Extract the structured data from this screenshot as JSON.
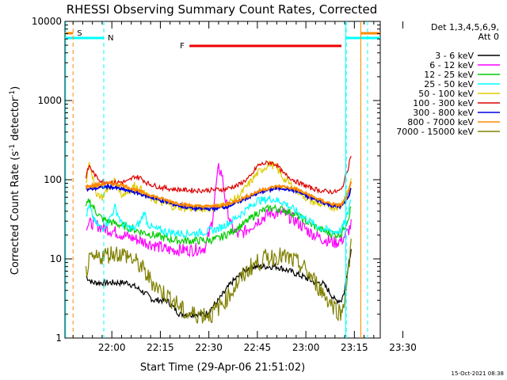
{
  "chart_data": {
    "type": "line",
    "title": "RHESSI Observing Summary Count Rates, Corrected",
    "xlabel": "Start Time (29-Apr-06 21:51:02)",
    "ylabel_main": "Corrected Count Rate (s",
    "ylabel_sup1": "-1",
    "ylabel_mid": " detector",
    "ylabel_sup2": "-1",
    "ylabel_end": ")",
    "y_scale": "log",
    "ylim": [
      1,
      10000
    ],
    "xlim_minutes": [
      -5.5,
      92
    ],
    "y_ticks": [
      {
        "value": 1,
        "label": "1"
      },
      {
        "value": 10,
        "label": "10"
      },
      {
        "value": 100,
        "label": "100"
      },
      {
        "value": 1000,
        "label": "1000"
      },
      {
        "value": 10000,
        "label": "10000"
      }
    ],
    "x_ticks": [
      {
        "value": 9,
        "label": "22:00"
      },
      {
        "value": 24,
        "label": "22:15"
      },
      {
        "value": 39,
        "label": "22:30"
      },
      {
        "value": 54,
        "label": "22:45"
      },
      {
        "value": 69,
        "label": "23:00"
      },
      {
        "value": 84,
        "label": "23:15"
      },
      {
        "value": 99,
        "label": "23:30"
      }
    ],
    "legend_title_1": "Det 1,3,4,5,6,9,",
    "legend_title_2": "Att 0",
    "legend_placement": "right",
    "series": [
      {
        "name": "3 - 6 keV",
        "color": "#000000",
        "values": [
          [
            1,
            6
          ],
          [
            3,
            5
          ],
          [
            6,
            5
          ],
          [
            10,
            5
          ],
          [
            14,
            5
          ],
          [
            18,
            4
          ],
          [
            22,
            3
          ],
          [
            26,
            3
          ],
          [
            30,
            2
          ],
          [
            34,
            2
          ],
          [
            38,
            2
          ],
          [
            42,
            3
          ],
          [
            46,
            5
          ],
          [
            50,
            7
          ],
          [
            52,
            8
          ],
          [
            56,
            8
          ],
          [
            60,
            8
          ],
          [
            64,
            7
          ],
          [
            68,
            6
          ],
          [
            72,
            5
          ],
          [
            74,
            5
          ],
          [
            76,
            4
          ],
          [
            78,
            3
          ],
          [
            80,
            3
          ],
          [
            81,
            4
          ],
          [
            82,
            8
          ],
          [
            83,
            13
          ]
        ]
      },
      {
        "name": "6 - 12 keV",
        "color": "#ff00ff",
        "values": [
          [
            1,
            27
          ],
          [
            3,
            28
          ],
          [
            6,
            25
          ],
          [
            10,
            22
          ],
          [
            14,
            19
          ],
          [
            18,
            17
          ],
          [
            22,
            15
          ],
          [
            26,
            13
          ],
          [
            30,
            13
          ],
          [
            34,
            13
          ],
          [
            38,
            14
          ],
          [
            40,
            30
          ],
          [
            41,
            70
          ],
          [
            42,
            140
          ],
          [
            43,
            120
          ],
          [
            44,
            60
          ],
          [
            46,
            25
          ],
          [
            48,
            20
          ],
          [
            50,
            22
          ],
          [
            54,
            30
          ],
          [
            58,
            38
          ],
          [
            62,
            38
          ],
          [
            66,
            30
          ],
          [
            70,
            22
          ],
          [
            74,
            18
          ],
          [
            78,
            16
          ],
          [
            80,
            17
          ],
          [
            82,
            22
          ],
          [
            83,
            27
          ]
        ]
      },
      {
        "name": "12 - 25 keV",
        "color": "#00cc00",
        "values": [
          [
            1,
            45
          ],
          [
            2,
            55
          ],
          [
            4,
            40
          ],
          [
            6,
            32
          ],
          [
            10,
            28
          ],
          [
            14,
            25
          ],
          [
            18,
            22
          ],
          [
            22,
            20
          ],
          [
            26,
            18
          ],
          [
            30,
            17
          ],
          [
            34,
            17
          ],
          [
            38,
            17
          ],
          [
            42,
            18
          ],
          [
            46,
            22
          ],
          [
            50,
            28
          ],
          [
            54,
            38
          ],
          [
            58,
            44
          ],
          [
            62,
            42
          ],
          [
            66,
            36
          ],
          [
            70,
            28
          ],
          [
            74,
            23
          ],
          [
            78,
            20
          ],
          [
            80,
            21
          ],
          [
            82,
            32
          ],
          [
            83,
            45
          ]
        ]
      },
      {
        "name": "25 - 50 keV",
        "color": "#00ffff",
        "values": [
          [
            1,
            35
          ],
          [
            2,
            45
          ],
          [
            4,
            28
          ],
          [
            6,
            24
          ],
          [
            8,
            30
          ],
          [
            10,
            45
          ],
          [
            12,
            28
          ],
          [
            14,
            25
          ],
          [
            16,
            24
          ],
          [
            18,
            30
          ],
          [
            19,
            40
          ],
          [
            20,
            28
          ],
          [
            22,
            24
          ],
          [
            26,
            22
          ],
          [
            30,
            21
          ],
          [
            34,
            21
          ],
          [
            38,
            22
          ],
          [
            42,
            24
          ],
          [
            46,
            30
          ],
          [
            50,
            40
          ],
          [
            54,
            55
          ],
          [
            56,
            55
          ],
          [
            58,
            58
          ],
          [
            62,
            52
          ],
          [
            66,
            40
          ],
          [
            70,
            30
          ],
          [
            74,
            24
          ],
          [
            78,
            22
          ],
          [
            80,
            23
          ],
          [
            82,
            38
          ],
          [
            83,
            60
          ]
        ]
      },
      {
        "name": "50 - 100 keV",
        "color": "#ddcc00",
        "values": [
          [
            1,
            90
          ],
          [
            2,
            180
          ],
          [
            4,
            70
          ],
          [
            6,
            60
          ],
          [
            8,
            80
          ],
          [
            10,
            100
          ],
          [
            12,
            65
          ],
          [
            14,
            70
          ],
          [
            16,
            85
          ],
          [
            18,
            75
          ],
          [
            20,
            60
          ],
          [
            24,
            52
          ],
          [
            28,
            46
          ],
          [
            32,
            44
          ],
          [
            36,
            43
          ],
          [
            40,
            44
          ],
          [
            44,
            48
          ],
          [
            48,
            60
          ],
          [
            52,
            95
          ],
          [
            54,
            120
          ],
          [
            56,
            140
          ],
          [
            58,
            160
          ],
          [
            60,
            140
          ],
          [
            62,
            105
          ],
          [
            66,
            75
          ],
          [
            70,
            55
          ],
          [
            74,
            48
          ],
          [
            78,
            45
          ],
          [
            80,
            48
          ],
          [
            82,
            75
          ],
          [
            83,
            100
          ]
        ]
      },
      {
        "name": "100 - 300 keV",
        "color": "#dd0000",
        "values": [
          [
            1,
            110
          ],
          [
            2,
            150
          ],
          [
            4,
            110
          ],
          [
            6,
            95
          ],
          [
            10,
            92
          ],
          [
            14,
            95
          ],
          [
            16,
            110
          ],
          [
            18,
            105
          ],
          [
            20,
            90
          ],
          [
            24,
            80
          ],
          [
            28,
            76
          ],
          [
            32,
            74
          ],
          [
            36,
            73
          ],
          [
            40,
            74
          ],
          [
            44,
            76
          ],
          [
            48,
            85
          ],
          [
            52,
            110
          ],
          [
            54,
            150
          ],
          [
            56,
            160
          ],
          [
            58,
            165
          ],
          [
            60,
            155
          ],
          [
            62,
            120
          ],
          [
            66,
            95
          ],
          [
            70,
            80
          ],
          [
            74,
            72
          ],
          [
            78,
            70
          ],
          [
            80,
            74
          ],
          [
            82,
            140
          ],
          [
            83,
            210
          ]
        ]
      },
      {
        "name": "300 - 800 keV",
        "color": "#0000dd",
        "values": [
          [
            1,
            75
          ],
          [
            4,
            78
          ],
          [
            8,
            82
          ],
          [
            12,
            76
          ],
          [
            16,
            70
          ],
          [
            20,
            62
          ],
          [
            24,
            55
          ],
          [
            28,
            49
          ],
          [
            32,
            45
          ],
          [
            36,
            43
          ],
          [
            40,
            43
          ],
          [
            44,
            45
          ],
          [
            48,
            52
          ],
          [
            52,
            62
          ],
          [
            56,
            72
          ],
          [
            60,
            78
          ],
          [
            62,
            78
          ],
          [
            66,
            72
          ],
          [
            70,
            60
          ],
          [
            74,
            52
          ],
          [
            78,
            46
          ],
          [
            80,
            46
          ],
          [
            82,
            58
          ],
          [
            83,
            80
          ]
        ]
      },
      {
        "name": "800 - 7000 keV",
        "color": "#ff8800",
        "values": [
          [
            1,
            82
          ],
          [
            4,
            85
          ],
          [
            8,
            90
          ],
          [
            12,
            86
          ],
          [
            16,
            75
          ],
          [
            20,
            66
          ],
          [
            24,
            58
          ],
          [
            28,
            52
          ],
          [
            32,
            48
          ],
          [
            36,
            46
          ],
          [
            40,
            46
          ],
          [
            44,
            48
          ],
          [
            48,
            55
          ],
          [
            52,
            65
          ],
          [
            56,
            76
          ],
          [
            60,
            82
          ],
          [
            62,
            82
          ],
          [
            66,
            76
          ],
          [
            70,
            64
          ],
          [
            74,
            54
          ],
          [
            78,
            48
          ],
          [
            80,
            48
          ],
          [
            82,
            65
          ],
          [
            83,
            92
          ]
        ]
      },
      {
        "name": "7000 - 15000 keV",
        "color": "#808000",
        "values": [
          [
            1,
            7
          ],
          [
            2,
            9
          ],
          [
            6,
            11
          ],
          [
            10,
            12
          ],
          [
            14,
            11
          ],
          [
            18,
            8
          ],
          [
            20,
            6
          ],
          [
            24,
            4
          ],
          [
            28,
            3
          ],
          [
            32,
            2
          ],
          [
            36,
            2
          ],
          [
            40,
            2
          ],
          [
            44,
            3
          ],
          [
            48,
            5
          ],
          [
            52,
            8
          ],
          [
            56,
            10
          ],
          [
            60,
            11
          ],
          [
            64,
            10
          ],
          [
            68,
            8
          ],
          [
            72,
            5
          ],
          [
            76,
            3
          ],
          [
            80,
            2
          ],
          [
            82,
            6
          ],
          [
            83,
            15
          ]
        ]
      }
    ],
    "annotations": {
      "s_label": "S",
      "n_label": "N",
      "f_label": "F",
      "saa_label_color": "#ff8800",
      "night_label_color": "#00ffff",
      "flare_label_color": "#ee0000",
      "saa_intervals": [
        [
          -6,
          -3
        ],
        [
          86,
          92
        ]
      ],
      "night_intervals": [
        [
          -6,
          6.5
        ],
        [
          81.5,
          92
        ]
      ],
      "flare_interval": [
        33,
        80
      ],
      "saa_markers": [
        -3,
        86
      ],
      "night_markers": [
        6.5,
        81.5,
        97
      ]
    },
    "footer_date": "15-Oct-2021 08:38"
  }
}
